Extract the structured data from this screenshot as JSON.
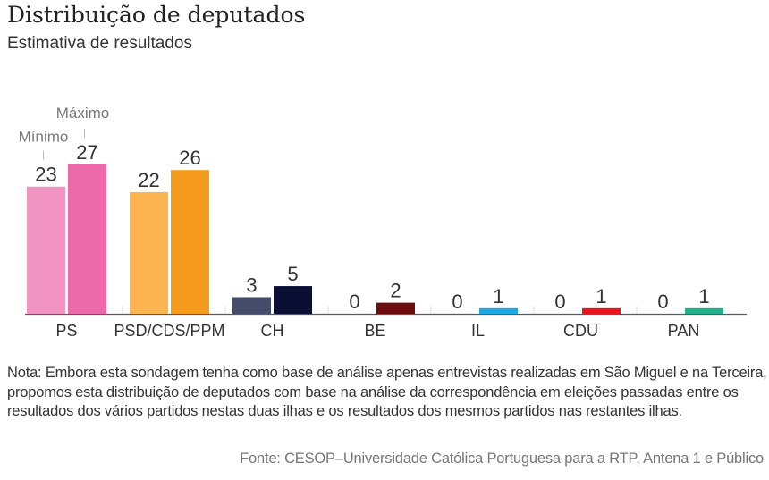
{
  "header": {
    "title": "Distribuição de deputados",
    "subtitle": "Estimativa de resultados"
  },
  "chart_data": {
    "type": "bar",
    "title": "Distribuição de deputados",
    "subtitle": "Estimativa de resultados",
    "xlabel": "",
    "ylabel": "",
    "ylim": [
      0,
      27
    ],
    "grid": false,
    "categories": [
      "PS",
      "PSD/CDS/PPM",
      "CH",
      "BE",
      "IL",
      "CDU",
      "PAN"
    ],
    "series": [
      {
        "name": "Mínimo",
        "values": [
          23,
          22,
          3,
          0,
          0,
          0,
          0
        ]
      },
      {
        "name": "Máximo",
        "values": [
          27,
          26,
          5,
          2,
          1,
          1,
          1
        ]
      }
    ],
    "colors": {
      "PS": [
        "#f294c1",
        "#ed6aa8"
      ],
      "PSD/CDS/PPM": [
        "#fbb450",
        "#f59c1e"
      ],
      "CH": [
        "#474c6b",
        "#0a0f33"
      ],
      "BE": [
        "#c7b3b3",
        "#6e0d0d"
      ],
      "IL": [
        "#9fd4f0",
        "#1ea8e0"
      ],
      "CDU": [
        "#f3a0a0",
        "#e8141e"
      ],
      "PAN": [
        "#9fdcc8",
        "#22b08d"
      ]
    },
    "annotations": [
      {
        "text": "Mínimo",
        "target": "PS min"
      },
      {
        "text": "Máximo",
        "target": "PS max"
      }
    ]
  },
  "note": "Nota: Embora esta sondagem tenha como base de análise apenas entrevistas realizadas em São Miguel e na Terceira, propomos esta distribuição de deputados com base na análise da correspondência em eleições passadas entre os resultados dos vários partidos nestas duas ilhas e os resultados dos mesmos partidos nas restantes ilhas.",
  "source": "Fonte: CESOP–Universidade Católica Portuguesa para a RTP, Antena 1 e Público"
}
